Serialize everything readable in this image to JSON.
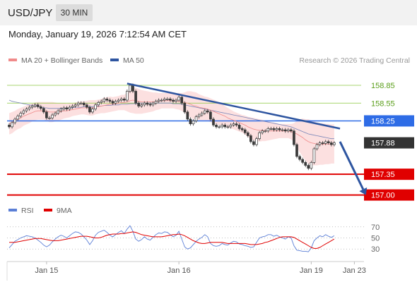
{
  "header": {
    "pair": "USD/JPY",
    "timeframe": "30 MIN",
    "datetime": "Monday, January 19, 2026 7:12:54 AM CET"
  },
  "legend": {
    "items": [
      {
        "label": "MA 20 + Bollinger Bands",
        "color": "#f08a8a"
      },
      {
        "label": "MA 50",
        "color": "#2e55a0"
      }
    ],
    "credit": "Research © 2026 Trading Central"
  },
  "rsi_legend": {
    "items": [
      {
        "label": "RSI",
        "color": "#5b7fd6"
      },
      {
        "label": "9MA",
        "color": "#e00000"
      }
    ]
  },
  "chart_data": {
    "type": "candlestick",
    "price_ylim": [
      156.9,
      159.1
    ],
    "levels": [
      {
        "label": "158.85",
        "value": 158.85,
        "color": "#8cc63f",
        "kind": "resistance"
      },
      {
        "label": "158.55",
        "value": 158.55,
        "color": "#8cc63f",
        "kind": "resistance"
      },
      {
        "label": "158.25",
        "value": 158.25,
        "color": "#2e6ce6",
        "kind": "pivot"
      },
      {
        "label": "157.35",
        "value": 157.35,
        "color": "#e00000",
        "kind": "support"
      },
      {
        "label": "157.00",
        "value": 157.0,
        "color": "#e00000",
        "kind": "support"
      }
    ],
    "last_price": {
      "label": "157.88",
      "value": 157.88
    },
    "x_ticks": [
      {
        "label": "Jan 15",
        "index": 13
      },
      {
        "label": "Jan 16",
        "index": 59
      },
      {
        "label": "Jan 19",
        "index": 105
      },
      {
        "label": "Jan 23",
        "index": 120
      }
    ],
    "close": [
      158.15,
      158.22,
      158.28,
      158.33,
      158.38,
      158.42,
      158.45,
      158.48,
      158.5,
      158.52,
      158.49,
      158.46,
      158.4,
      158.3,
      158.3,
      158.35,
      158.38,
      158.42,
      158.45,
      158.47,
      158.45,
      158.48,
      158.5,
      158.52,
      158.55,
      158.55,
      158.52,
      158.48,
      158.4,
      158.45,
      158.52,
      158.56,
      158.58,
      158.62,
      158.6,
      158.58,
      158.55,
      158.58,
      158.6,
      158.62,
      158.6,
      158.75,
      158.85,
      158.75,
      158.55,
      158.5,
      158.52,
      158.55,
      158.53,
      158.52,
      158.55,
      158.58,
      158.6,
      158.6,
      158.62,
      158.62,
      158.6,
      158.58,
      158.6,
      158.65,
      158.55,
      158.4,
      158.28,
      158.2,
      158.25,
      158.32,
      158.35,
      158.38,
      158.42,
      158.4,
      158.28,
      158.18,
      158.15,
      158.15,
      158.18,
      158.15,
      158.15,
      158.18,
      158.2,
      158.18,
      158.12,
      158.1,
      158.05,
      158.0,
      157.9,
      157.85,
      157.95,
      158.05,
      158.08,
      158.08,
      158.12,
      158.12,
      158.1,
      158.12,
      158.1,
      158.1,
      158.08,
      158.1,
      158.08,
      157.85,
      157.65,
      157.6,
      157.55,
      157.5,
      157.45,
      157.55,
      157.78,
      157.85,
      157.88,
      157.87,
      157.9,
      157.88,
      157.85,
      157.88
    ],
    "ma20": [
      158.2,
      158.22,
      158.25,
      158.28,
      158.3,
      158.33,
      158.35,
      158.37,
      158.39,
      158.41,
      158.42,
      158.42,
      158.42,
      158.41,
      158.4,
      158.4,
      158.4,
      158.4,
      158.41,
      158.42,
      158.42,
      158.43,
      158.44,
      158.45,
      158.46,
      158.47,
      158.47,
      158.47,
      158.47,
      158.47,
      158.48,
      158.49,
      158.5,
      158.51,
      158.52,
      158.53,
      158.53,
      158.54,
      158.55,
      158.56,
      158.56,
      158.57,
      158.59,
      158.6,
      158.59,
      158.58,
      158.57,
      158.57,
      158.57,
      158.57,
      158.57,
      158.58,
      158.58,
      158.59,
      158.59,
      158.59,
      158.59,
      158.59,
      158.58,
      158.58,
      158.57,
      158.56,
      158.55,
      158.53,
      158.51,
      158.5,
      158.48,
      158.47,
      158.46,
      158.45,
      158.43,
      158.41,
      158.39,
      158.37,
      158.35,
      158.33,
      158.3,
      158.28,
      158.26,
      158.24,
      158.22,
      158.2,
      158.18,
      158.15,
      158.13,
      158.11,
      158.1,
      158.09,
      158.09,
      158.08,
      158.08,
      158.08,
      158.08,
      158.08,
      158.08,
      158.08,
      158.08,
      158.08,
      158.07,
      158.05,
      158.03,
      158.0,
      157.97,
      157.93,
      157.9,
      157.88,
      157.87,
      157.86,
      157.86,
      157.86,
      157.86,
      157.86,
      157.86,
      157.86
    ],
    "bb_width": [
      0.18,
      0.18,
      0.17,
      0.17,
      0.17,
      0.16,
      0.16,
      0.16,
      0.15,
      0.15,
      0.15,
      0.15,
      0.15,
      0.16,
      0.17,
      0.17,
      0.16,
      0.15,
      0.14,
      0.13,
      0.12,
      0.12,
      0.11,
      0.11,
      0.11,
      0.11,
      0.11,
      0.12,
      0.13,
      0.13,
      0.12,
      0.12,
      0.12,
      0.13,
      0.13,
      0.13,
      0.12,
      0.12,
      0.12,
      0.13,
      0.13,
      0.16,
      0.2,
      0.22,
      0.22,
      0.21,
      0.2,
      0.19,
      0.18,
      0.17,
      0.16,
      0.15,
      0.14,
      0.13,
      0.13,
      0.13,
      0.13,
      0.13,
      0.13,
      0.14,
      0.15,
      0.17,
      0.2,
      0.22,
      0.23,
      0.23,
      0.22,
      0.21,
      0.2,
      0.2,
      0.2,
      0.2,
      0.2,
      0.19,
      0.18,
      0.17,
      0.17,
      0.16,
      0.15,
      0.15,
      0.15,
      0.15,
      0.16,
      0.17,
      0.18,
      0.19,
      0.19,
      0.19,
      0.18,
      0.17,
      0.16,
      0.15,
      0.14,
      0.13,
      0.12,
      0.12,
      0.12,
      0.12,
      0.13,
      0.16,
      0.22,
      0.28,
      0.32,
      0.35,
      0.38,
      0.38,
      0.37,
      0.36,
      0.35,
      0.35,
      0.34,
      0.34,
      0.33,
      0.33
    ],
    "ma50": [
      158.6,
      158.58,
      158.57,
      158.56,
      158.55,
      158.54,
      158.53,
      158.52,
      158.51,
      158.5,
      158.49,
      158.48,
      158.47,
      158.47,
      158.46,
      158.46,
      158.46,
      158.46,
      158.46,
      158.46,
      158.47,
      158.47,
      158.47,
      158.48,
      158.48,
      158.48,
      158.49,
      158.49,
      158.49,
      158.49,
      158.5,
      158.5,
      158.5,
      158.51,
      158.51,
      158.51,
      158.52,
      158.52,
      158.52,
      158.53,
      158.53,
      158.53,
      158.54,
      158.54,
      158.54,
      158.55,
      158.55,
      158.55,
      158.55,
      158.55,
      158.55,
      158.55,
      158.55,
      158.55,
      158.55,
      158.55,
      158.55,
      158.54,
      158.54,
      158.54,
      158.53,
      158.52,
      158.51,
      158.5,
      158.49,
      158.48,
      158.47,
      158.46,
      158.45,
      158.44,
      158.43,
      158.42,
      158.41,
      158.4,
      158.39,
      158.38,
      158.37,
      158.36,
      158.35,
      158.34,
      158.33,
      158.32,
      158.31,
      158.3,
      158.29,
      158.28,
      158.27,
      158.26,
      158.25,
      158.24,
      158.23,
      158.22,
      158.21,
      158.2,
      158.19,
      158.18,
      158.17,
      158.16,
      158.15,
      158.13,
      158.11,
      158.09,
      158.07,
      158.05,
      158.03,
      158.02,
      158.01,
      158.0,
      157.99,
      157.98,
      157.97,
      157.96,
      157.95,
      157.95
    ],
    "trendlines": [
      {
        "from": {
          "index": 41,
          "value": 158.88
        },
        "to": {
          "index": 115,
          "value": 158.12
        },
        "color": "#2e55a0"
      }
    ],
    "forecast_arrow": {
      "from": {
        "index": 115,
        "value": 157.9
      },
      "to": {
        "index": 124,
        "value": 157.0
      }
    },
    "rsi_ylim": [
      15,
      85
    ],
    "rsi_levels": [
      {
        "label": "70",
        "value": 70
      },
      {
        "label": "50",
        "value": 50
      },
      {
        "label": "30",
        "value": 30
      }
    ],
    "rsi": [
      32,
      38,
      44,
      47,
      50,
      52,
      54,
      53,
      52,
      50,
      46,
      42,
      37,
      34,
      37,
      43,
      48,
      52,
      55,
      53,
      50,
      54,
      58,
      61,
      60,
      57,
      52,
      46,
      38,
      45,
      55,
      60,
      62,
      64,
      60,
      55,
      52,
      56,
      60,
      63,
      58,
      66,
      72,
      62,
      48,
      44,
      47,
      52,
      48,
      46,
      51,
      56,
      59,
      58,
      61,
      60,
      56,
      52,
      55,
      62,
      48,
      34,
      30,
      32,
      38,
      44,
      48,
      51,
      56,
      52,
      40,
      36,
      35,
      36,
      40,
      38,
      37,
      41,
      44,
      43,
      39,
      38,
      36,
      35,
      33,
      34,
      42,
      50,
      52,
      53,
      56,
      56,
      53,
      55,
      52,
      50,
      48,
      52,
      50,
      36,
      28,
      27,
      26,
      26,
      25,
      32,
      45,
      50,
      54,
      52,
      56,
      53,
      51,
      54
    ],
    "rsi_ma9": [
      42,
      42,
      42,
      43,
      44,
      45,
      46,
      47,
      48,
      49,
      49,
      49,
      48,
      47,
      46,
      45,
      45,
      45,
      46,
      47,
      48,
      49,
      50,
      51,
      52,
      53,
      53,
      53,
      52,
      51,
      50,
      50,
      51,
      53,
      55,
      56,
      57,
      57,
      57,
      58,
      58,
      59,
      60,
      61,
      60,
      58,
      56,
      55,
      54,
      53,
      52,
      52,
      52,
      52,
      53,
      54,
      55,
      56,
      56,
      57,
      56,
      54,
      51,
      48,
      45,
      43,
      41,
      40,
      40,
      41,
      42,
      42,
      42,
      42,
      42,
      41,
      40,
      40,
      40,
      40,
      40,
      40,
      40,
      39,
      38,
      38,
      38,
      39,
      40,
      42,
      43,
      45,
      47,
      49,
      51,
      52,
      52,
      52,
      52,
      51,
      48,
      45,
      42,
      39,
      36,
      33,
      31,
      31,
      33,
      36,
      39,
      42,
      45,
      48
    ]
  }
}
